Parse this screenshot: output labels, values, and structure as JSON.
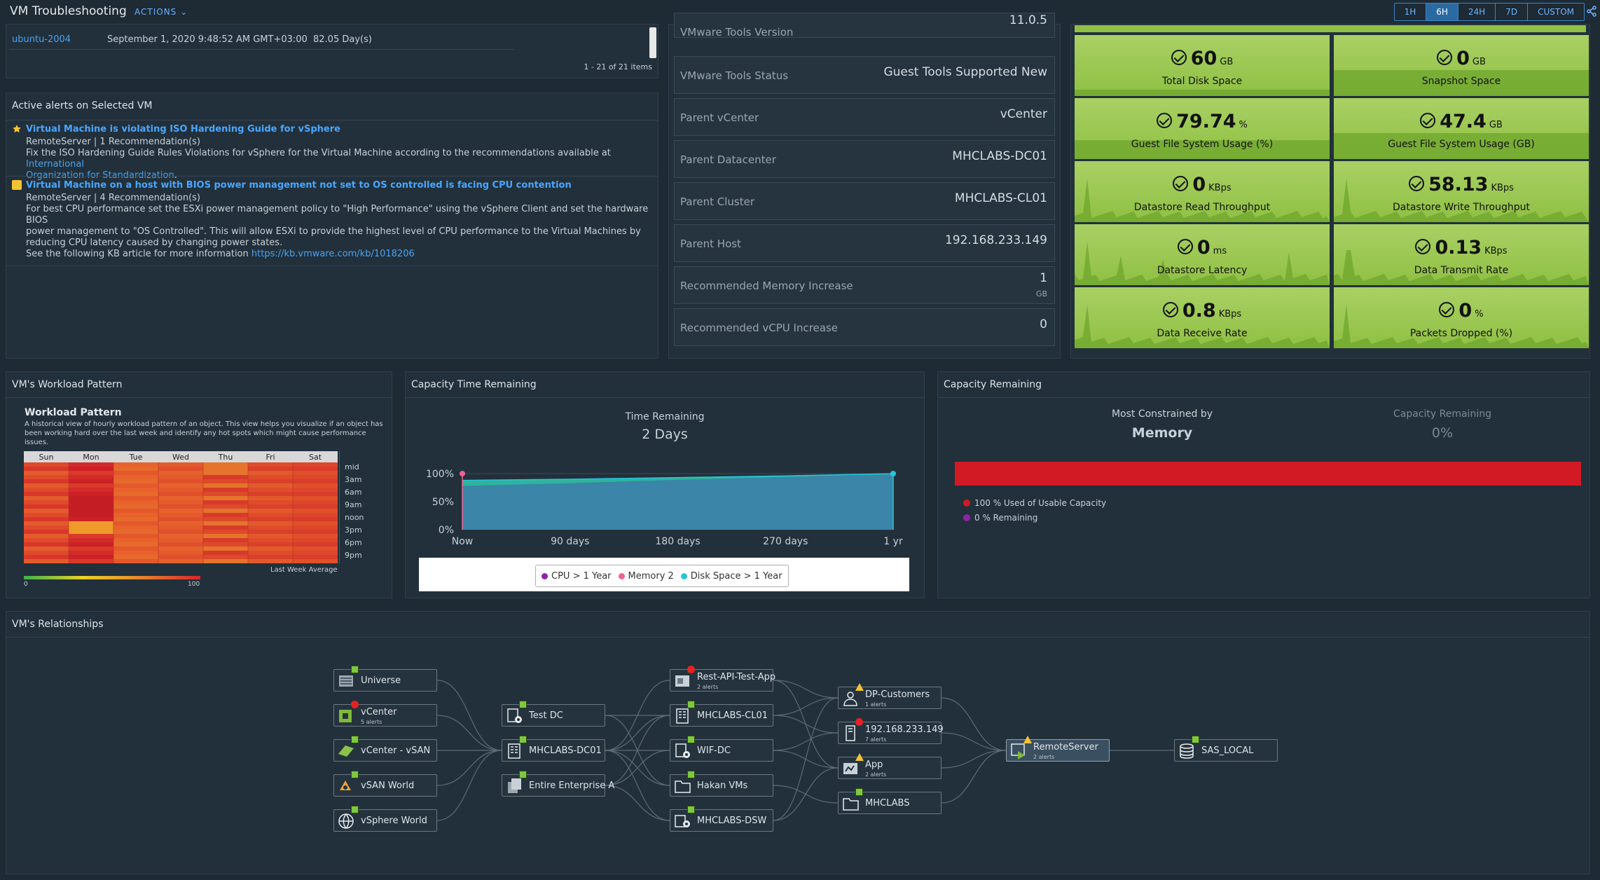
{
  "header": {
    "title": "VM Troubleshooting",
    "actions": "ACTIONS",
    "time_ranges": [
      "1H",
      "6H",
      "24H",
      "7D",
      "CUSTOM"
    ],
    "selected": "6H"
  },
  "vm_list": {
    "row": {
      "name": "ubuntu-2004",
      "date": "September 1, 2020 9:48:52 AM GMT+03:00",
      "age": "82.05 Day(s)"
    },
    "pagination": "1 - 21 of 21 items"
  },
  "alerts": {
    "title": "Active alerts on Selected VM",
    "items": [
      {
        "title": "Virtual Machine is violating ISO Hardening Guide for vSphere",
        "source": "RemoteServer | 1 Recommendation(s)",
        "desc": "Fix the ISO Hardening Guide Rules Violations for vSphere for the Virtual Machine according to the recommendations available at ",
        "link1": "International",
        "link2": "Organization for Standardization",
        "tail": "."
      },
      {
        "title": "Virtual Machine on a host with BIOS power management not set to OS controlled is facing CPU contention",
        "source": "RemoteServer | 4 Recommendation(s)",
        "desc1": "For best CPU performance set the ESXi power management policy to \"High Performance\" using the vSphere Client and set the hardware BIOS",
        "desc2": "power management to \"OS Controlled\". This will allow ESXi to provide the highest level of CPU performance to the Virtual Machines by",
        "desc3": "reducing CPU latency caused by changing power states.",
        "kb": "See the following KB article for more information ",
        "kb_link": "https://kb.vmware.com/kb/1018206"
      }
    ]
  },
  "properties": [
    {
      "k": "VMware Tools Version",
      "v": "11.0.5"
    },
    {
      "k": "VMware Tools Status",
      "v": "Guest Tools Supported New"
    },
    {
      "k": "Parent vCenter",
      "v": "vCenter"
    },
    {
      "k": "Parent Datacenter",
      "v": "MHCLABS-DC01"
    },
    {
      "k": "Parent Cluster",
      "v": "MHCLABS-CL01"
    },
    {
      "k": "Parent Host",
      "v": "192.168.233.149"
    },
    {
      "k": "Recommended Memory Increase",
      "v": "1",
      "u": "GB"
    },
    {
      "k": "Recommended vCPU Increase",
      "v": "0"
    }
  ],
  "metrics": [
    {
      "val": "60",
      "unit": "GB",
      "label": "Total Disk Space"
    },
    {
      "val": "0",
      "unit": "GB",
      "label": "Snapshot Space"
    },
    {
      "val": "79.74",
      "unit": "%",
      "label": "Guest File System Usage (%)"
    },
    {
      "val": "47.4",
      "unit": "GB",
      "label": "Guest File System Usage (GB)"
    },
    {
      "val": "0",
      "unit": "KBps",
      "label": "Datastore Read Throughput"
    },
    {
      "val": "58.13",
      "unit": "KBps",
      "label": "Datastore Write Throughput"
    },
    {
      "val": "0",
      "unit": "ms",
      "label": "Datastore Latency"
    },
    {
      "val": "0.13",
      "unit": "KBps",
      "label": "Data Transmit Rate"
    },
    {
      "val": "0.8",
      "unit": "KBps",
      "label": "Data Receive Rate"
    },
    {
      "val": "0",
      "unit": "%",
      "label": "Packets Dropped (%)"
    }
  ],
  "workload": {
    "panel_title": "VM's Workload Pattern",
    "title": "Workload Pattern",
    "desc1": "A historical view of hourly workload pattern of an object. This view helps you visualize if an object has",
    "desc2": "been working hard over the last week and identify any hot spots which might cause performance issues.",
    "days": [
      "Sun",
      "Mon",
      "Tue",
      "Wed",
      "Thu",
      "Fri",
      "Sat"
    ],
    "hours": [
      "mid",
      "3am",
      "6am",
      "9am",
      "noon",
      "3pm",
      "6pm",
      "9pm"
    ],
    "footer": "Last Week Average",
    "scale_min": "0",
    "scale_max": "100"
  },
  "capacity_time": {
    "panel_title": "Capacity Time Remaining",
    "label": "Time Remaining",
    "value": "2 Days"
  },
  "chart_data": {
    "type": "area",
    "x": [
      "Now",
      "90 days",
      "180 days",
      "270 days",
      "1 yr"
    ],
    "yticks": [
      "100%",
      "50%",
      "0%"
    ],
    "ylim": [
      0,
      100
    ],
    "series": [
      {
        "name": "CPU > 1 Year",
        "color": "#8e24aa",
        "values": [
          88,
          90,
          93,
          96,
          100
        ]
      },
      {
        "name": "Memory 2",
        "color": "#f06292",
        "values": [
          null,
          null,
          null,
          null,
          null
        ]
      },
      {
        "name": "Disk Space > 1 Year",
        "color": "#26c6da",
        "values": [
          78,
          83,
          89,
          94,
          100
        ]
      }
    ]
  },
  "capacity_remaining": {
    "panel_title": "Capacity Remaining",
    "most_constrained_label": "Most Constrained by",
    "most_constrained_value": "Memory",
    "remaining_label": "Capacity Remaining",
    "remaining_value": "0%",
    "legend1": "100 % Used of Usable Capacity",
    "legend2": "0 % Remaining",
    "used_pct": 100
  },
  "relationships": {
    "title": "VM's Relationships",
    "nodes": [
      {
        "id": "universe",
        "label": "Universe"
      },
      {
        "id": "vcenter",
        "label": "vCenter",
        "sub": "5 alerts"
      },
      {
        "id": "vcenter-vsan",
        "label": "vCenter - vSAN"
      },
      {
        "id": "vsan-world",
        "label": "vSAN World"
      },
      {
        "id": "vsphere-world",
        "label": "vSphere World"
      },
      {
        "id": "test-dc",
        "label": "Test DC"
      },
      {
        "id": "mhclabs-dc01",
        "label": "MHCLABS-DC01"
      },
      {
        "id": "entire-enterprise",
        "label": "Entire Enterprise A"
      },
      {
        "id": "rest-api",
        "label": "Rest-API-Test-App",
        "sub": "2 alerts"
      },
      {
        "id": "mhclabs-cl01",
        "label": "MHCLABS-CL01"
      },
      {
        "id": "wif-dc",
        "label": "WIF-DC"
      },
      {
        "id": "hakan-vms",
        "label": "Hakan VMs"
      },
      {
        "id": "mhclabs-dsw",
        "label": "MHCLABS-DSW"
      },
      {
        "id": "dp-customers",
        "label": "DP-Customers",
        "sub": "1 alerts"
      },
      {
        "id": "host",
        "label": "192.168.233.149",
        "sub": "7 alerts"
      },
      {
        "id": "app",
        "label": "App",
        "sub": "2 alerts"
      },
      {
        "id": "mhclabs",
        "label": "MHCLABS"
      },
      {
        "id": "remoteserver",
        "label": "RemoteServer",
        "sub": "2 alerts"
      },
      {
        "id": "sas-local",
        "label": "SAS_LOCAL"
      }
    ]
  },
  "colors": {
    "tile_green": "#9fcb56",
    "bar_red": "#d11a24",
    "accent": "#4aa3f0"
  }
}
